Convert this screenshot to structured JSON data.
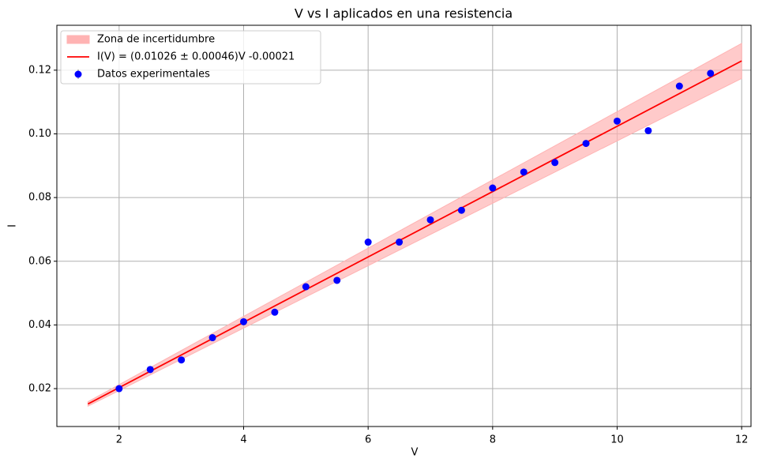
{
  "chart_data": {
    "type": "scatter",
    "title": "V vs I aplicados en una resistencia",
    "x_label": "V",
    "y_label": "I",
    "xlim": [
      1.0,
      12.15
    ],
    "ylim": [
      0.0081,
      0.1341
    ],
    "xticks": [
      2,
      4,
      6,
      8,
      10,
      12
    ],
    "yticks": [
      0.02,
      0.04,
      0.06,
      0.08,
      {
        "value": 0.1,
        "label": "0.10"
      },
      0.12
    ],
    "grid": true,
    "legend": "upper left",
    "band": {
      "name": "Zona de incertidumbre",
      "color": "#ffb3b3",
      "x": [
        1.5,
        12
      ],
      "lower": [
        0.0145,
        0.1174
      ],
      "upper": [
        0.0159,
        0.1284
      ]
    },
    "fit": {
      "name": "I(V) = (0.01026 ± 0.00046)V -0.00021",
      "color": "#ff0000",
      "x": [
        1.5,
        12
      ],
      "values": [
        0.01518,
        0.12291
      ]
    },
    "series": [
      {
        "name": "Datos experimentales",
        "color": "#0000ff",
        "x": [
          2,
          2.5,
          3,
          3.5,
          4,
          4.5,
          5,
          5.5,
          6,
          6.5,
          7,
          7.5,
          8,
          8.5,
          9,
          9.5,
          10,
          10.5,
          11,
          11.5
        ],
        "values": [
          0.02,
          0.026,
          0.029,
          0.036,
          0.041,
          0.044,
          0.052,
          0.054,
          0.066,
          0.066,
          0.073,
          0.076,
          0.083,
          0.088,
          0.091,
          0.097,
          0.104,
          0.101,
          0.115,
          0.119
        ]
      }
    ]
  }
}
